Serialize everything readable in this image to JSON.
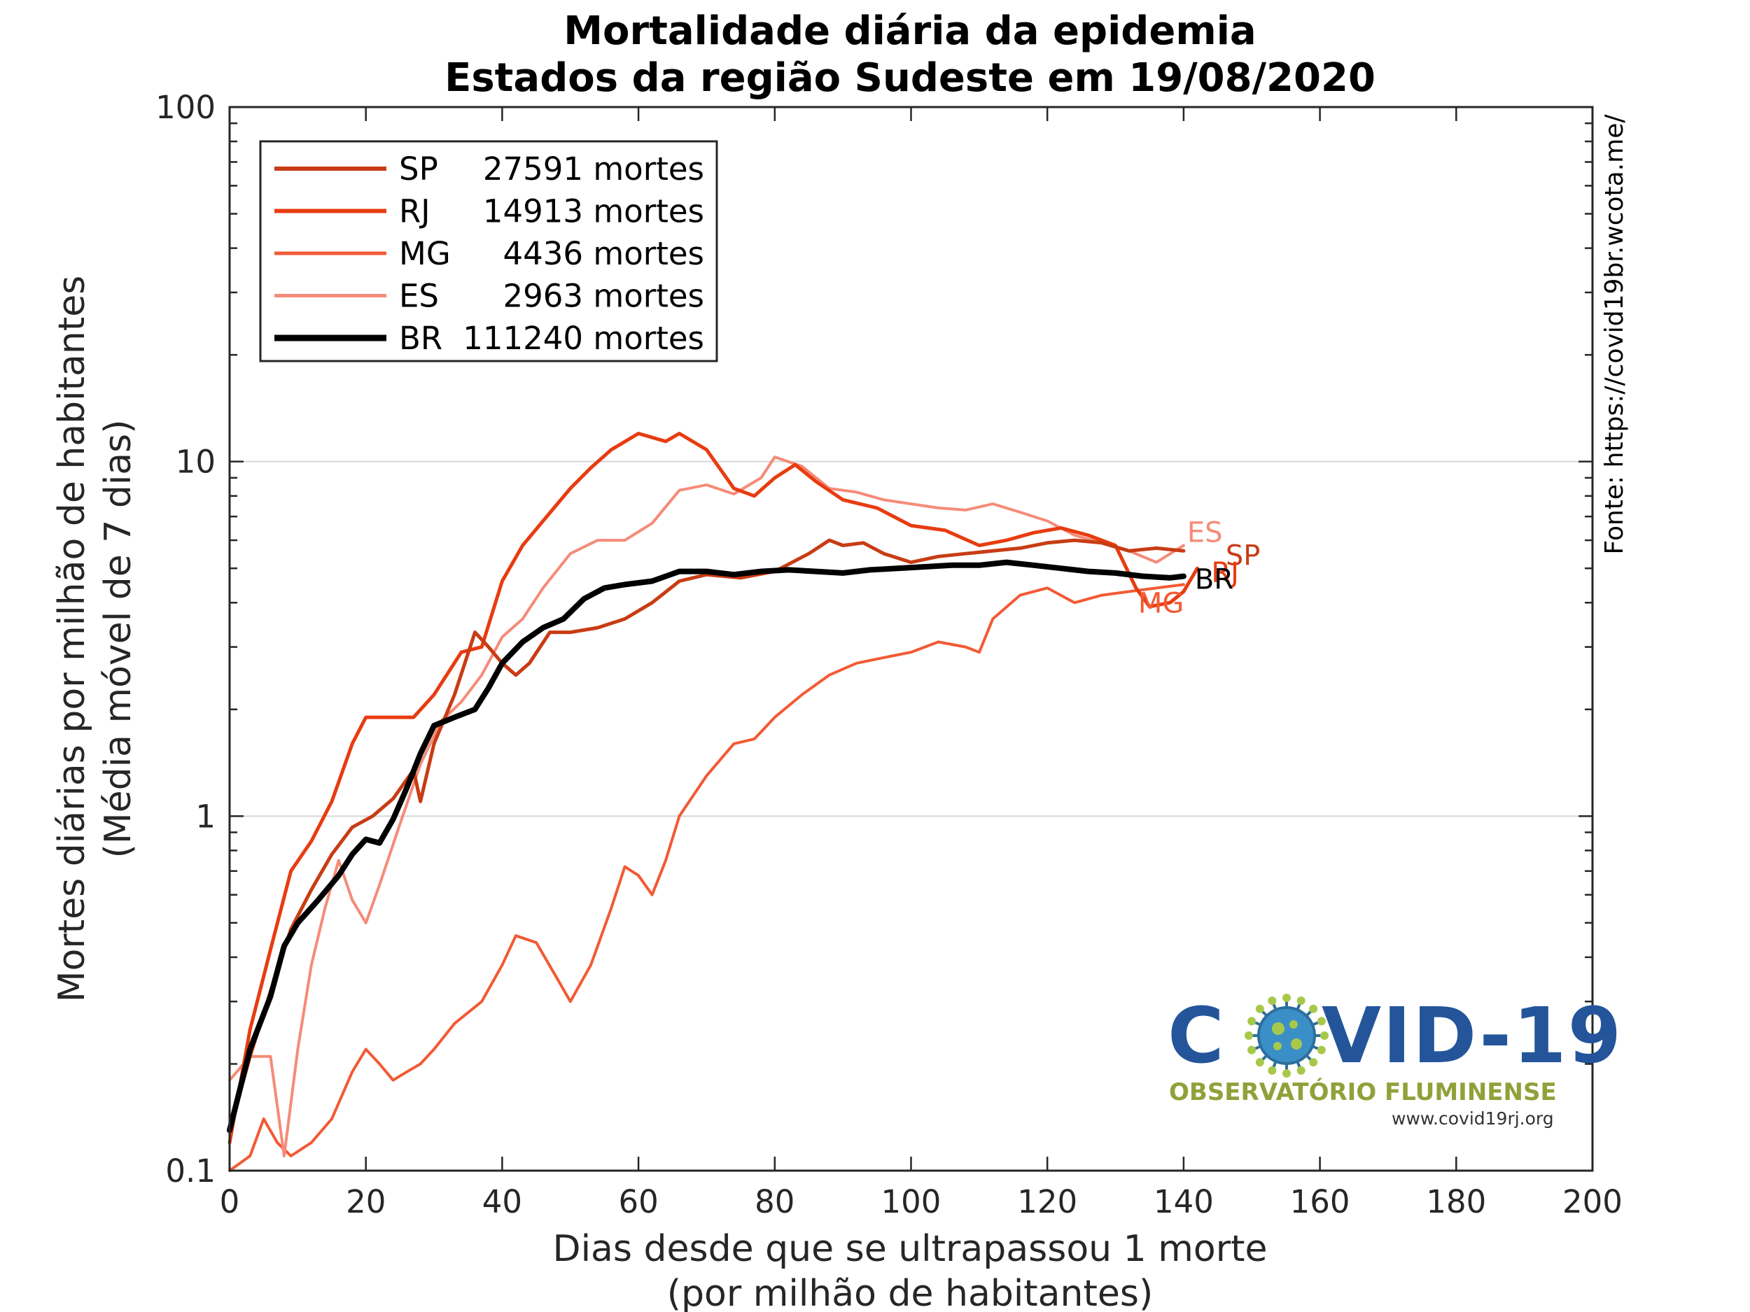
{
  "chart_data": {
    "type": "line",
    "title": "Mortalidade diária da epidemia",
    "subtitle": "Estados da região Sudeste em 19/08/2020",
    "xlabel": "Dias desde que se ultrapassou 1 morte",
    "xlabel2": "(por milhão de habitantes)",
    "ylabel": "Mortes diárias por milhão de habitantes",
    "ylabel2": "(Média móvel de 7 dias)",
    "xlim": [
      0,
      200
    ],
    "ylim": [
      0.1,
      100
    ],
    "yscale": "log",
    "grid": "horizontal major",
    "legend_position": "top-left",
    "x_ticks": [
      "0",
      "20",
      "40",
      "60",
      "80",
      "100",
      "120",
      "140",
      "160",
      "180",
      "200"
    ],
    "y_ticks": [
      "0.1",
      "1",
      "10",
      "100"
    ],
    "source_text": "Fonte: https://covid19br.wcota.me/",
    "series": [
      {
        "name": "SP",
        "legend_count": "27591 mortes",
        "end_label": "SP",
        "color": "#c83c14",
        "width": 5,
        "points": [
          [
            0,
            0.13
          ],
          [
            3,
            0.21
          ],
          [
            6,
            0.32
          ],
          [
            9,
            0.48
          ],
          [
            12,
            0.62
          ],
          [
            15,
            0.78
          ],
          [
            18,
            0.93
          ],
          [
            21,
            1.0
          ],
          [
            24,
            1.12
          ],
          [
            27,
            1.35
          ],
          [
            28,
            1.1
          ],
          [
            30,
            1.6
          ],
          [
            33,
            2.2
          ],
          [
            36,
            3.3
          ],
          [
            38,
            3.0
          ],
          [
            40,
            2.7
          ],
          [
            42,
            2.5
          ],
          [
            44,
            2.7
          ],
          [
            47,
            3.3
          ],
          [
            50,
            3.3
          ],
          [
            54,
            3.4
          ],
          [
            58,
            3.6
          ],
          [
            62,
            4.0
          ],
          [
            66,
            4.6
          ],
          [
            70,
            4.8
          ],
          [
            75,
            4.7
          ],
          [
            80,
            4.9
          ],
          [
            85,
            5.5
          ],
          [
            88,
            6.0
          ],
          [
            90,
            5.8
          ],
          [
            93,
            5.9
          ],
          [
            96,
            5.5
          ],
          [
            100,
            5.2
          ],
          [
            104,
            5.4
          ],
          [
            108,
            5.5
          ],
          [
            112,
            5.6
          ],
          [
            116,
            5.7
          ],
          [
            120,
            5.9
          ],
          [
            124,
            6.0
          ],
          [
            128,
            5.9
          ],
          [
            132,
            5.6
          ],
          [
            136,
            5.7
          ],
          [
            140,
            5.6
          ]
        ]
      },
      {
        "name": "RJ",
        "legend_count": "14913 mortes",
        "end_label": "RJ",
        "color": "#e83c10",
        "width": 5,
        "points": [
          [
            0,
            0.12
          ],
          [
            3,
            0.25
          ],
          [
            6,
            0.42
          ],
          [
            9,
            0.7
          ],
          [
            12,
            0.85
          ],
          [
            15,
            1.1
          ],
          [
            18,
            1.6
          ],
          [
            20,
            1.9
          ],
          [
            24,
            1.9
          ],
          [
            27,
            1.9
          ],
          [
            30,
            2.2
          ],
          [
            34,
            2.9
          ],
          [
            37,
            3.0
          ],
          [
            40,
            4.6
          ],
          [
            43,
            5.8
          ],
          [
            46,
            6.8
          ],
          [
            50,
            8.4
          ],
          [
            53,
            9.6
          ],
          [
            56,
            10.8
          ],
          [
            60,
            12.0
          ],
          [
            64,
            11.4
          ],
          [
            66,
            12.0
          ],
          [
            70,
            10.8
          ],
          [
            74,
            8.4
          ],
          [
            77,
            8.0
          ],
          [
            80,
            9.0
          ],
          [
            83,
            9.8
          ],
          [
            86,
            8.8
          ],
          [
            90,
            7.8
          ],
          [
            95,
            7.4
          ],
          [
            100,
            6.6
          ],
          [
            105,
            6.4
          ],
          [
            110,
            5.8
          ],
          [
            114,
            6.0
          ],
          [
            118,
            6.3
          ],
          [
            122,
            6.5
          ],
          [
            126,
            6.2
          ],
          [
            130,
            5.8
          ],
          [
            133,
            4.4
          ],
          [
            135,
            3.9
          ],
          [
            138,
            4.0
          ],
          [
            140,
            4.3
          ],
          [
            142,
            5.0
          ]
        ]
      },
      {
        "name": "MG",
        "legend_count": "4436 mortes",
        "end_label": "MG",
        "color": "#f25a34",
        "width": 4,
        "points": [
          [
            0,
            0.1
          ],
          [
            3,
            0.11
          ],
          [
            5,
            0.14
          ],
          [
            7,
            0.12
          ],
          [
            9,
            0.11
          ],
          [
            12,
            0.12
          ],
          [
            15,
            0.14
          ],
          [
            18,
            0.19
          ],
          [
            20,
            0.22
          ],
          [
            22,
            0.2
          ],
          [
            24,
            0.18
          ],
          [
            26,
            0.19
          ],
          [
            28,
            0.2
          ],
          [
            30,
            0.22
          ],
          [
            33,
            0.26
          ],
          [
            37,
            0.3
          ],
          [
            40,
            0.38
          ],
          [
            42,
            0.46
          ],
          [
            45,
            0.44
          ],
          [
            48,
            0.35
          ],
          [
            50,
            0.3
          ],
          [
            53,
            0.38
          ],
          [
            56,
            0.55
          ],
          [
            58,
            0.72
          ],
          [
            60,
            0.68
          ],
          [
            62,
            0.6
          ],
          [
            64,
            0.75
          ],
          [
            66,
            1.0
          ],
          [
            70,
            1.3
          ],
          [
            74,
            1.6
          ],
          [
            77,
            1.65
          ],
          [
            80,
            1.9
          ],
          [
            84,
            2.2
          ],
          [
            88,
            2.5
          ],
          [
            92,
            2.7
          ],
          [
            96,
            2.8
          ],
          [
            100,
            2.9
          ],
          [
            104,
            3.1
          ],
          [
            108,
            3.0
          ],
          [
            110,
            2.9
          ],
          [
            112,
            3.6
          ],
          [
            116,
            4.2
          ],
          [
            120,
            4.4
          ],
          [
            124,
            4.0
          ],
          [
            128,
            4.2
          ],
          [
            132,
            4.3
          ],
          [
            136,
            4.4
          ],
          [
            140,
            4.5
          ]
        ]
      },
      {
        "name": "ES",
        "legend_count": "2963 mortes",
        "end_label": "ES",
        "color": "#f58b78",
        "width": 4,
        "points": [
          [
            0,
            0.18
          ],
          [
            3,
            0.21
          ],
          [
            6,
            0.21
          ],
          [
            8,
            0.11
          ],
          [
            10,
            0.22
          ],
          [
            12,
            0.38
          ],
          [
            14,
            0.55
          ],
          [
            16,
            0.75
          ],
          [
            18,
            0.58
          ],
          [
            20,
            0.5
          ],
          [
            22,
            0.64
          ],
          [
            25,
            0.95
          ],
          [
            28,
            1.4
          ],
          [
            31,
            1.85
          ],
          [
            34,
            2.1
          ],
          [
            37,
            2.5
          ],
          [
            40,
            3.2
          ],
          [
            43,
            3.6
          ],
          [
            46,
            4.4
          ],
          [
            50,
            5.5
          ],
          [
            54,
            6.0
          ],
          [
            58,
            6.0
          ],
          [
            62,
            6.7
          ],
          [
            66,
            8.3
          ],
          [
            70,
            8.6
          ],
          [
            74,
            8.1
          ],
          [
            78,
            9.0
          ],
          [
            80,
            10.3
          ],
          [
            84,
            9.7
          ],
          [
            88,
            8.4
          ],
          [
            92,
            8.2
          ],
          [
            96,
            7.8
          ],
          [
            100,
            7.6
          ],
          [
            104,
            7.4
          ],
          [
            108,
            7.3
          ],
          [
            112,
            7.6
          ],
          [
            116,
            7.2
          ],
          [
            120,
            6.8
          ],
          [
            124,
            6.2
          ],
          [
            128,
            5.9
          ],
          [
            132,
            5.6
          ],
          [
            136,
            5.2
          ],
          [
            140,
            5.8
          ]
        ]
      },
      {
        "name": "BR",
        "legend_count": "111240 mortes",
        "end_label": "BR",
        "color": "#000000",
        "width": 8,
        "points": [
          [
            0,
            0.13
          ],
          [
            3,
            0.22
          ],
          [
            6,
            0.31
          ],
          [
            8,
            0.43
          ],
          [
            10,
            0.5
          ],
          [
            13,
            0.58
          ],
          [
            16,
            0.68
          ],
          [
            18,
            0.78
          ],
          [
            20,
            0.86
          ],
          [
            22,
            0.84
          ],
          [
            24,
            0.98
          ],
          [
            26,
            1.2
          ],
          [
            28,
            1.5
          ],
          [
            30,
            1.8
          ],
          [
            33,
            1.9
          ],
          [
            36,
            2.0
          ],
          [
            38,
            2.3
          ],
          [
            40,
            2.7
          ],
          [
            43,
            3.1
          ],
          [
            46,
            3.4
          ],
          [
            49,
            3.6
          ],
          [
            52,
            4.1
          ],
          [
            55,
            4.4
          ],
          [
            58,
            4.5
          ],
          [
            62,
            4.6
          ],
          [
            66,
            4.9
          ],
          [
            70,
            4.9
          ],
          [
            74,
            4.8
          ],
          [
            78,
            4.9
          ],
          [
            82,
            4.95
          ],
          [
            86,
            4.9
          ],
          [
            90,
            4.85
          ],
          [
            94,
            4.95
          ],
          [
            98,
            5.0
          ],
          [
            102,
            5.05
          ],
          [
            106,
            5.1
          ],
          [
            110,
            5.1
          ],
          [
            114,
            5.2
          ],
          [
            118,
            5.1
          ],
          [
            122,
            5.0
          ],
          [
            126,
            4.9
          ],
          [
            130,
            4.85
          ],
          [
            134,
            4.75
          ],
          [
            138,
            4.7
          ],
          [
            140,
            4.75
          ]
        ]
      }
    ]
  },
  "logo": {
    "title_left": "C",
    "title_right": "VID-19",
    "subtitle": "OBSERVATÓRIO FLUMINENSE",
    "url": "www.covid19rj.org"
  }
}
